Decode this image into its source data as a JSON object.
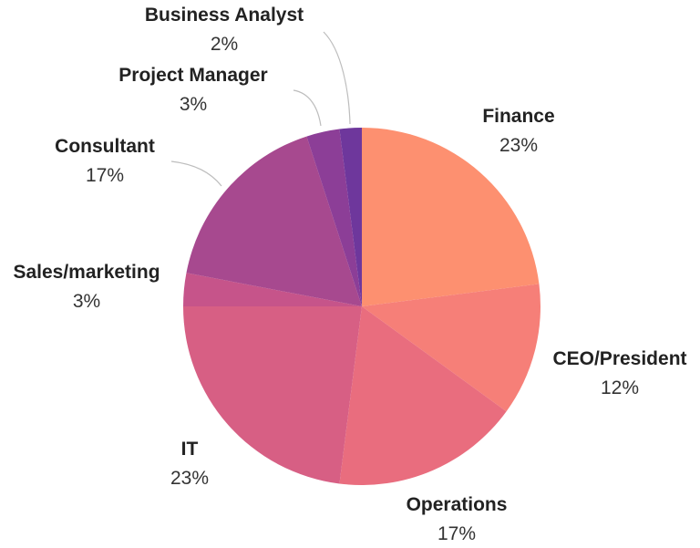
{
  "chart_data": {
    "type": "pie",
    "title": "",
    "start_angle_deg": 0,
    "direction": "clockwise",
    "slices": [
      {
        "label": "Finance",
        "value": 23,
        "value_label": "23%",
        "color": "#FD9070"
      },
      {
        "label": "CEO/President",
        "value": 12,
        "value_label": "12%",
        "color": "#F67F78"
      },
      {
        "label": "Operations",
        "value": 17,
        "value_label": "17%",
        "color": "#E96D7E"
      },
      {
        "label": "IT",
        "value": 23,
        "value_label": "23%",
        "color": "#D75F84"
      },
      {
        "label": "Sales/marketing",
        "value": 3,
        "value_label": "3%",
        "color": "#C6548A"
      },
      {
        "label": "Consultant",
        "value": 17,
        "value_label": "17%",
        "color": "#A7498F"
      },
      {
        "label": "Project Manager",
        "value": 3,
        "value_label": "3%",
        "color": "#8C3E97"
      },
      {
        "label": "Business Analyst",
        "value": 2,
        "value_label": "2%",
        "color": "#6E379C"
      }
    ]
  }
}
